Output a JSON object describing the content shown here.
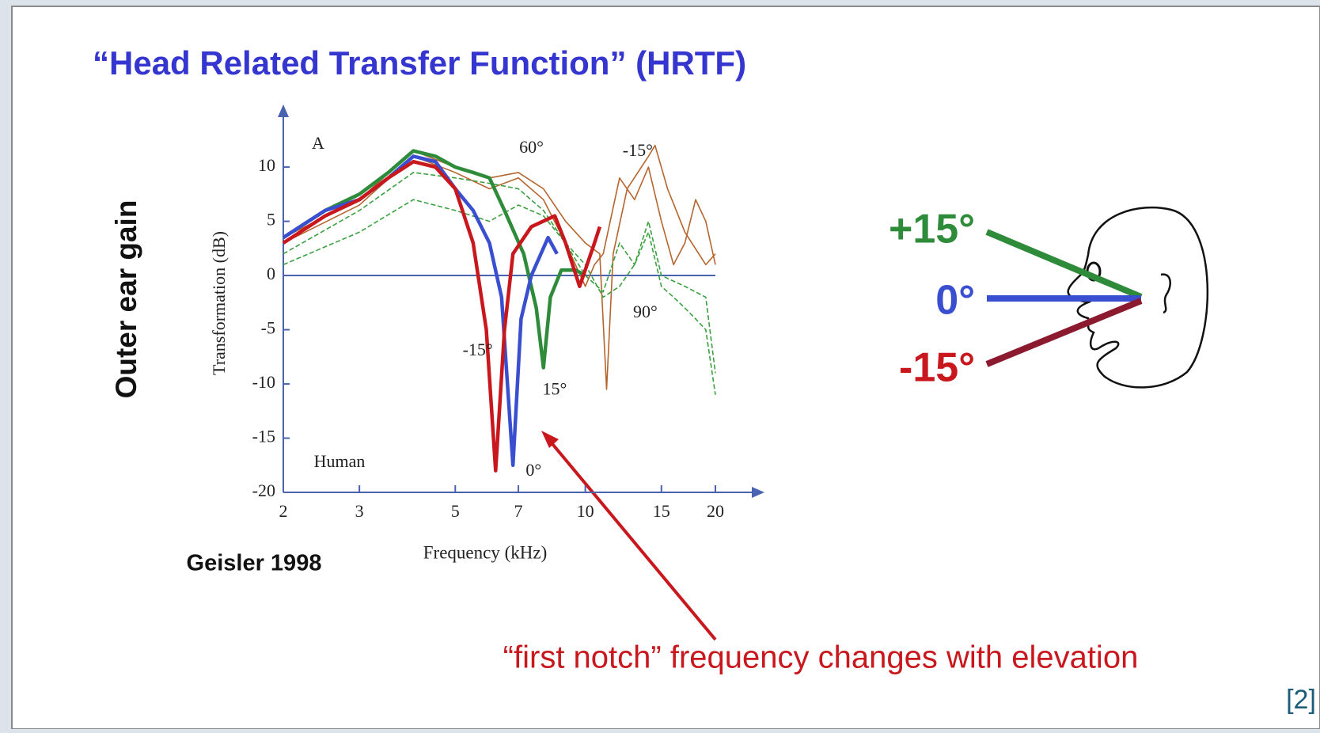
{
  "title": "“Head Related Transfer Function” (HRTF)",
  "side_label": "Outer ear gain",
  "credit": "Geisler 1998",
  "caption": "“first notch” frequency changes with elevation",
  "reference": "[2]",
  "diagram": {
    "labels": [
      "+15°",
      "0°",
      "-15°"
    ]
  },
  "chart_data": {
    "type": "line",
    "xlabel": "Frequency (kHz)",
    "ylabel": "Transformation (dB)",
    "panel_label": "A",
    "note": "Human",
    "xscale": "log",
    "xlim": [
      2,
      20
    ],
    "xticks": [
      2,
      3,
      5,
      7,
      10,
      15,
      20
    ],
    "ylim": [
      -20,
      13
    ],
    "yticks": [
      -20,
      -15,
      -10,
      -5,
      0,
      5,
      10
    ],
    "series": [
      {
        "color": "#b5652e",
        "style": "thin",
        "x": [
          2,
          3,
          4,
          5,
          6,
          7,
          8,
          9,
          10,
          10.8,
          11.2,
          11.6,
          12.5,
          14,
          14.5,
          15.5,
          17,
          19,
          20
        ],
        "values": [
          3.5,
          7,
          11.5,
          10,
          9,
          9.5,
          8,
          5,
          3,
          2,
          -10.5,
          2,
          8,
          11,
          12,
          8,
          4,
          1,
          2
        ]
      },
      {
        "color": "#b5652e",
        "style": "thin",
        "x": [
          2,
          3,
          4,
          5,
          6,
          7,
          8,
          9,
          10,
          10.5,
          11,
          12,
          13,
          14,
          15,
          16,
          17,
          18,
          19,
          20
        ],
        "values": [
          3,
          6.5,
          11,
          9.5,
          8,
          9,
          7,
          3,
          -1,
          1,
          2,
          9,
          7,
          10,
          5,
          1,
          3,
          7,
          5,
          1
        ]
      },
      {
        "color": "#3aa040",
        "style": "dashed",
        "x": [
          2,
          3,
          4,
          5,
          6,
          7,
          8,
          9,
          10,
          11,
          12,
          13,
          14,
          15,
          16,
          17,
          18,
          19,
          20
        ],
        "values": [
          1,
          4,
          7,
          6,
          5,
          6.5,
          5.5,
          3,
          1,
          -2,
          -1,
          1,
          4,
          -1,
          -2,
          -3,
          -4,
          -5,
          -11
        ]
      },
      {
        "color": "#3aa040",
        "style": "dashed",
        "x": [
          2,
          3,
          4,
          5,
          6,
          7,
          8,
          9,
          10,
          11,
          12,
          13,
          14,
          15,
          17,
          19,
          20
        ],
        "values": [
          2,
          6,
          9.5,
          9,
          8.5,
          8,
          6,
          3,
          0,
          -1.5,
          3,
          1,
          5,
          0,
          -1,
          -2,
          -9
        ]
      },
      {
        "color": "#2e8b3a",
        "style": "thick",
        "x": [
          2,
          2.5,
          3,
          3.5,
          4,
          4.5,
          5,
          5.5,
          6,
          6.5,
          7.2,
          7.7,
          8,
          8.3,
          8.8,
          9.5,
          10
        ],
        "values": [
          3.5,
          6,
          7.5,
          9.5,
          11.5,
          11,
          10,
          9.5,
          9,
          6,
          2,
          -3,
          -8.5,
          -2,
          0.5,
          0.5,
          0
        ]
      },
      {
        "color": "#3a4fd0",
        "style": "thick",
        "x": [
          2,
          2.5,
          3,
          3.5,
          4,
          4.5,
          5,
          5.5,
          6,
          6.4,
          6.8,
          7.1,
          7.5,
          8.2,
          8.6
        ],
        "values": [
          3.5,
          6,
          7,
          9,
          11,
          10.5,
          8,
          6,
          3,
          -2,
          -17.5,
          -4,
          0,
          3.5,
          2
        ]
      },
      {
        "color": "#c8171d",
        "style": "thick",
        "x": [
          2,
          2.5,
          3,
          3.5,
          4,
          4.5,
          5,
          5.5,
          5.9,
          6.2,
          6.5,
          6.8,
          7.5,
          8.5,
          9,
          9.7,
          10.5,
          10.8
        ],
        "values": [
          3,
          5.5,
          7,
          9,
          10.5,
          10,
          8,
          3,
          -5,
          -18,
          -5,
          2,
          4.5,
          5.5,
          3,
          -1,
          3,
          4.5
        ]
      }
    ],
    "annotations": [
      {
        "text": "-15°",
        "x": 5.2,
        "y": -7
      },
      {
        "text": "15°",
        "x": 7.96,
        "y": -10.6
      },
      {
        "text": "0°",
        "x": 7.28,
        "y": -18.1
      },
      {
        "text": "60°",
        "x": 7.03,
        "y": 11.7
      },
      {
        "text": "-15°",
        "x": 12.2,
        "y": 11.4
      },
      {
        "text": "90°",
        "x": 12.9,
        "y": -3.5
      }
    ]
  }
}
